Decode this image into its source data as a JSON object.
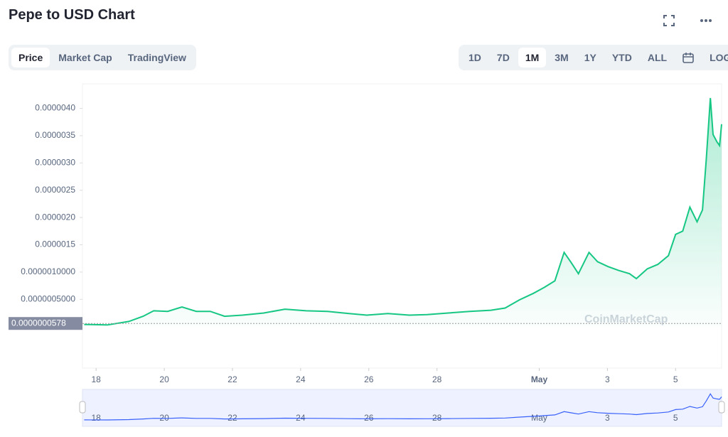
{
  "header": {
    "title": "Pepe to USD Chart"
  },
  "view_tabs": [
    "Price",
    "Market Cap",
    "TradingView"
  ],
  "active_view": 0,
  "range_tabs": [
    "1D",
    "7D",
    "1M",
    "3M",
    "1Y",
    "YTD",
    "ALL"
  ],
  "active_range": 2,
  "log_button": "LOG",
  "chart_data": {
    "type": "line",
    "watermark": "CoinMarketCap",
    "color": "#16c784",
    "x": [
      17.65,
      18.33,
      18.96,
      19.38,
      19.69,
      20.1,
      20.52,
      20.94,
      21.35,
      21.77,
      22.29,
      22.92,
      23.54,
      24.17,
      24.79,
      25.42,
      25.94,
      26.56,
      27.19,
      27.71,
      28.33,
      28.96,
      29.58,
      30.0,
      30.42,
      30.83,
      31.15,
      31.46,
      31.73,
      31.94,
      32.15,
      32.46,
      32.71,
      33.02,
      33.33,
      33.65,
      33.85,
      34.17,
      34.48,
      34.79,
      35.0,
      35.21,
      35.42,
      35.63,
      35.79,
      35.9,
      36.02,
      36.1,
      36.21,
      36.29,
      36.35
    ],
    "values": [
      4e-08,
      3e-08,
      9.5e-08,
      1.9e-07,
      2.9e-07,
      2.8e-07,
      3.6e-07,
      2.8e-07,
      2.8e-07,
      1.9e-07,
      2.1e-07,
      2.5e-07,
      3.2e-07,
      2.9e-07,
      2.8e-07,
      2.4e-07,
      2.1e-07,
      2.4e-07,
      2.1e-07,
      2.2e-07,
      2.5e-07,
      2.8e-07,
      3e-07,
      3.4e-07,
      4.9e-07,
      6.1e-07,
      7.2e-07,
      8.4e-07,
      1.36e-06,
      1.17e-06,
      9.7e-07,
      1.36e-06,
      1.19e-06,
      1.1e-06,
      1.03e-06,
      9.7e-07,
      8.8e-07,
      1.06e-06,
      1.14e-06,
      1.3e-06,
      1.69e-06,
      1.75e-06,
      2.19e-06,
      1.92e-06,
      2.14e-06,
      3.06e-06,
      4.19e-06,
      3.52e-06,
      3.39e-06,
      3.32e-06,
      3.71e-06
    ],
    "xlim": [
      17.6,
      36.35
    ],
    "xticks": [
      18,
      20,
      22,
      24,
      26,
      28,
      {
        "value": 31,
        "label": "May"
      },
      {
        "value": 33,
        "label": "3"
      },
      {
        "value": 35,
        "label": "5"
      }
    ],
    "ylim": [
      -7.6e-07,
      4.45e-06
    ],
    "yticks": [
      {
        "value": 5e-07,
        "label": "0.0000005000"
      },
      {
        "value": 1e-06,
        "label": "0.0000010000"
      },
      {
        "value": 1.5e-06,
        "label": "0.0000015"
      },
      {
        "value": 2e-06,
        "label": "0.0000020"
      },
      {
        "value": 2.5e-06,
        "label": "0.0000025"
      },
      {
        "value": 3e-06,
        "label": "0.0000030"
      },
      {
        "value": 3.5e-06,
        "label": "0.0000035"
      },
      {
        "value": 4e-06,
        "label": "0.0000040"
      }
    ],
    "price_label": {
      "value": 5.78e-08,
      "label": "0.0000000578"
    }
  }
}
